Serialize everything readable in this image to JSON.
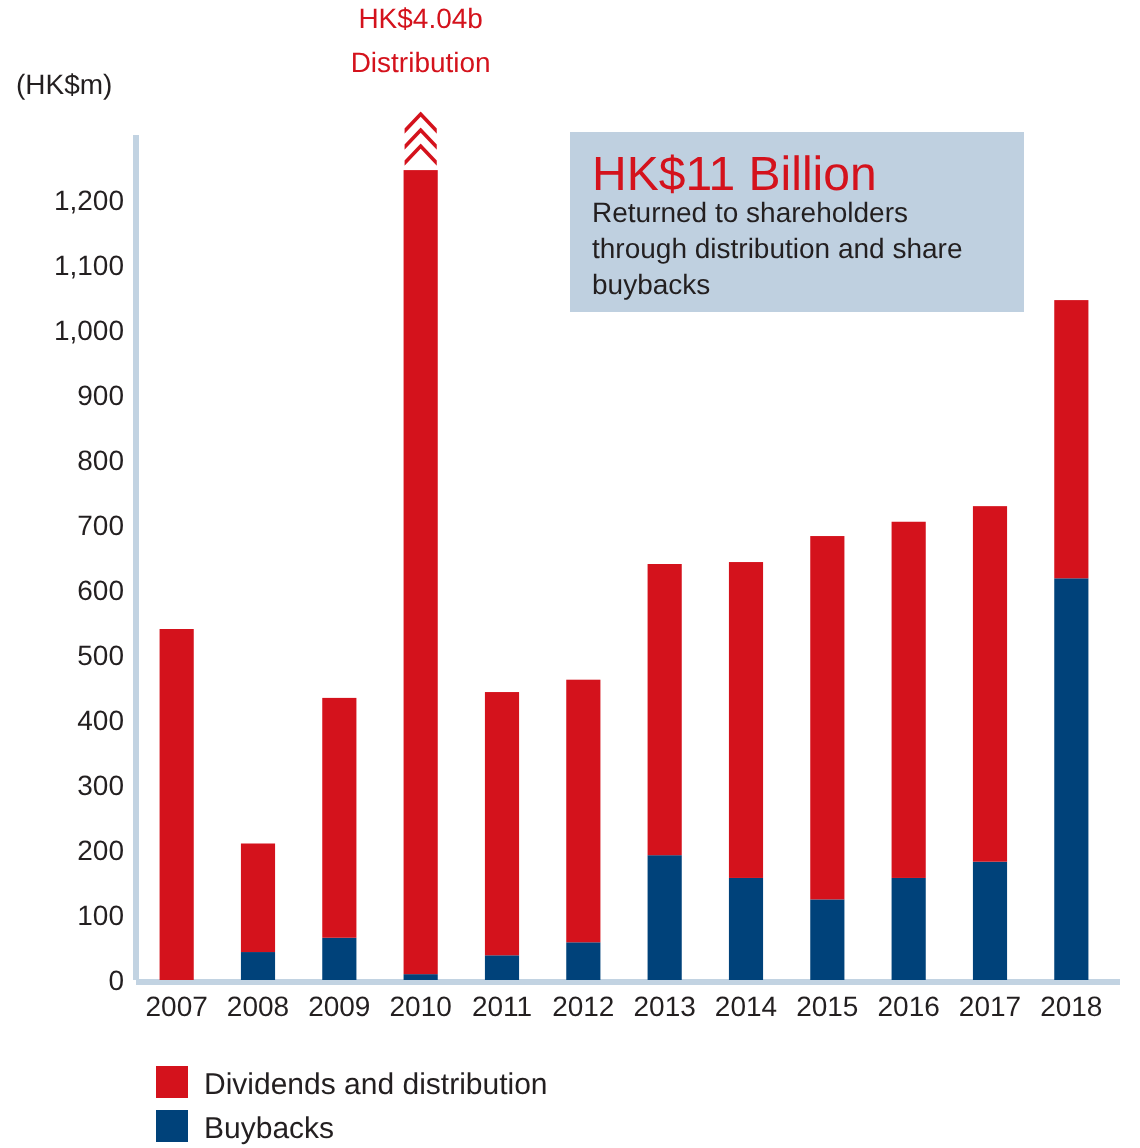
{
  "chart_data": {
    "type": "bar",
    "stacked": true,
    "ylabel": "(HK$m)",
    "categories": [
      "2007",
      "2008",
      "2009",
      "2010",
      "2011",
      "2012",
      "2013",
      "2014",
      "2015",
      "2016",
      "2017",
      "2018"
    ],
    "series": [
      {
        "name": "Buybacks",
        "color": "#00427a",
        "values": [
          0,
          43,
          65,
          9,
          38,
          58,
          192,
          157,
          124,
          157,
          182,
          618
        ]
      },
      {
        "name": "Dividends and distribution",
        "color": "#d4121c",
        "values": [
          540,
          167,
          369,
          1237,
          405,
          404,
          448,
          486,
          559,
          548,
          547,
          428
        ]
      }
    ],
    "ylim": [
      0,
      1300
    ],
    "yticks": [
      0,
      100,
      200,
      300,
      400,
      500,
      600,
      700,
      800,
      900,
      {
        "value": 1000,
        "label": "1,000"
      },
      {
        "value": 1100,
        "label": "1,100"
      },
      {
        "value": 1200,
        "label": "1,200"
      }
    ],
    "legend": "bottom left",
    "grid": false,
    "annotations": [
      "HK$4.04b\nDistribution",
      "HK$11 Billion",
      "Returned to shareholders\nthrough distribution and share\nbuybacks"
    ]
  }
}
